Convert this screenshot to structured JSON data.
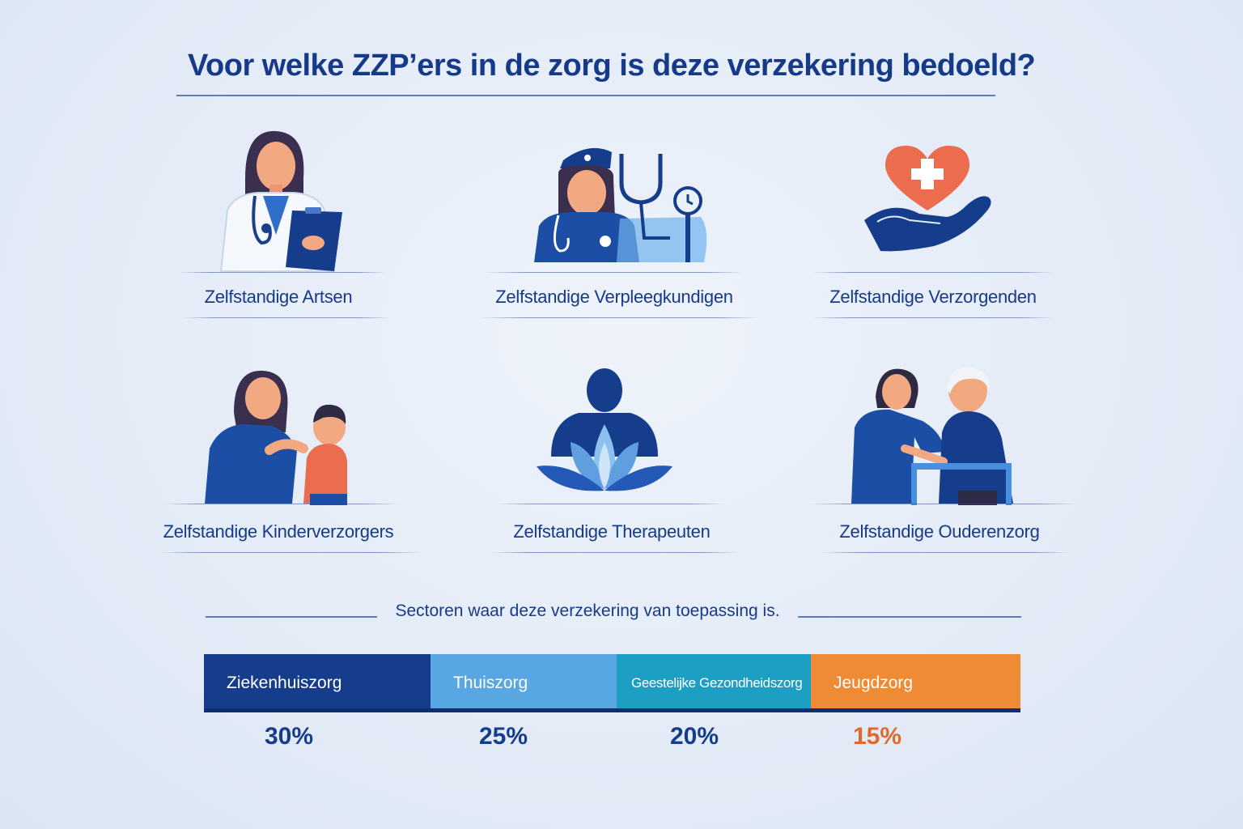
{
  "title": "Voor welke ZZP’ers in de zorg is deze verzekering bedoeld?",
  "professions": [
    {
      "label": "Zelfstandige Artsen",
      "icon": "doctor-icon"
    },
    {
      "label": "Zelfstandige Verpleegkundigen",
      "icon": "nurse-icon"
    },
    {
      "label": "Zelfstandige Verzorgenden",
      "icon": "heart-hand-icon"
    },
    {
      "label": "Zelfstandige Kinderverzorgers",
      "icon": "childcare-icon"
    },
    {
      "label": "Zelfstandige Therapeuten",
      "icon": "therapist-lotus-icon"
    },
    {
      "label": "Zelfstandige Ouderenzorg",
      "icon": "elderly-care-icon"
    }
  ],
  "sectors_title": "Sectoren waar deze verzekering van toepassing is.",
  "sectors": [
    {
      "label": "Ziekenhuiszorg",
      "percent": "30%",
      "color": "#163d8c",
      "pct_color": "#163d8c"
    },
    {
      "label": "Thuiszorg",
      "percent": "25%",
      "color": "#58a6e2",
      "pct_color": "#163d8c"
    },
    {
      "label": "Geestelijke Gezondheidszorg",
      "percent": "20%",
      "color": "#1d9fc4",
      "pct_color": "#163d8c"
    },
    {
      "label": "Jeugdzorg",
      "percent": "15%",
      "color": "#ef8a35",
      "pct_color": "#e06a2c"
    }
  ]
}
